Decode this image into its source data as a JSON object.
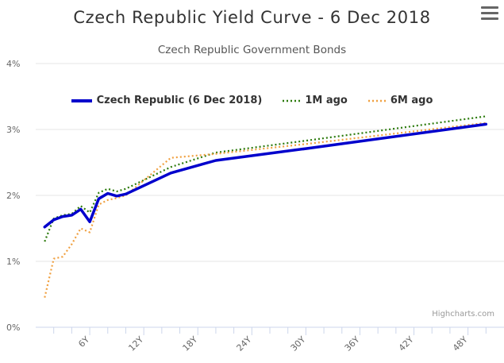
{
  "chart_data": {
    "type": "line",
    "title": "Czech Republic Yield Curve - 6 Dec 2018",
    "subtitle": "Czech Republic Government Bonds",
    "x_unit": "years to maturity",
    "xticks": [
      "6Y",
      "12Y",
      "18Y",
      "24Y",
      "30Y",
      "36Y",
      "42Y",
      "48Y"
    ],
    "xlim": [
      0,
      52
    ],
    "yticks": [
      "0%",
      "1%",
      "2%",
      "3%",
      "4%"
    ],
    "ylim": [
      0,
      4
    ],
    "grid": true,
    "legend_position": "top-center",
    "series": [
      {
        "name": "Czech Republic (6 Dec 2018)",
        "color": "#0000cc",
        "style": "solid",
        "x": [
          1,
          2,
          3,
          4,
          5,
          6,
          7,
          8,
          9,
          10,
          15,
          20,
          30,
          50
        ],
        "values": [
          1.52,
          1.63,
          1.68,
          1.7,
          1.79,
          1.6,
          1.95,
          2.03,
          1.99,
          2.02,
          2.34,
          2.53,
          2.71,
          3.08
        ]
      },
      {
        "name": "1M ago",
        "color": "#2b7a0b",
        "style": "dotted",
        "x": [
          1,
          2,
          3,
          4,
          5,
          6,
          7,
          8,
          9,
          10,
          15,
          20,
          30,
          50
        ],
        "values": [
          1.3,
          1.65,
          1.7,
          1.72,
          1.84,
          1.74,
          2.04,
          2.1,
          2.06,
          2.1,
          2.43,
          2.65,
          2.83,
          3.2
        ]
      },
      {
        "name": "6M ago",
        "color": "#f0a040",
        "style": "dotted",
        "x": [
          1,
          2,
          3,
          4,
          5,
          6,
          7,
          8,
          9,
          10,
          15,
          20,
          30,
          50
        ],
        "values": [
          0.45,
          1.04,
          1.07,
          1.26,
          1.5,
          1.44,
          1.86,
          1.93,
          1.96,
          2.0,
          2.57,
          2.63,
          2.78,
          3.1
        ]
      }
    ],
    "credits": "Highcharts.com"
  }
}
